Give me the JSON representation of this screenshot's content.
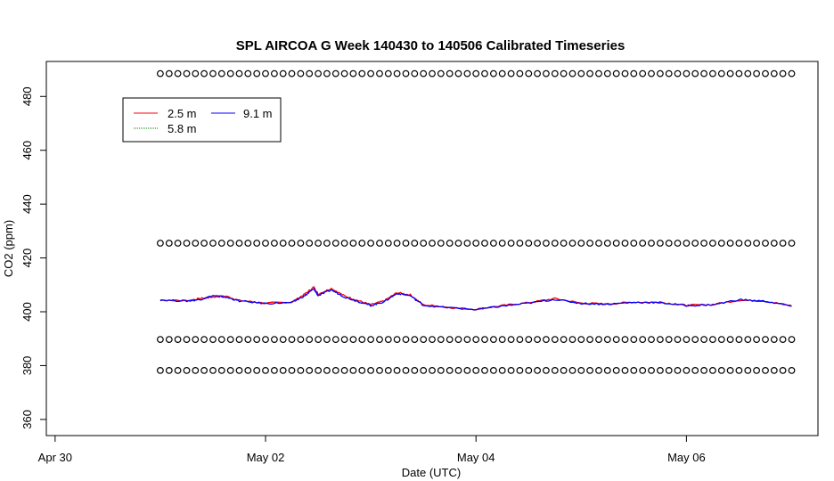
{
  "chart_data": {
    "type": "line",
    "title": "SPL AIRCOA G  Week 140430 to 140506  Calibrated Timeseries",
    "xlabel": "Date (UTC)",
    "ylabel": "CO2 (ppm)",
    "x_unit": "days",
    "xlim": [
      "2014-04-29T22:00",
      "2014-05-07T06:00"
    ],
    "ylim": [
      354,
      493
    ],
    "x_ticks": [
      {
        "label": "Apr 30",
        "value": "2014-04-30T00:00"
      },
      {
        "label": "May 02",
        "value": "2014-05-02T00:00"
      },
      {
        "label": "May 04",
        "value": "2014-05-04T00:00"
      },
      {
        "label": "May 06",
        "value": "2014-05-06T00:00"
      }
    ],
    "y_ticks": [
      360,
      380,
      400,
      420,
      440,
      460,
      480
    ],
    "grid": false,
    "legend": {
      "placement": "top-left",
      "entries": [
        {
          "name": "2.5 m",
          "color": "#ff0000"
        },
        {
          "name": "5.8 m",
          "color": "#008000"
        },
        {
          "name": "9.1 m",
          "color": "#0000ff"
        }
      ]
    },
    "series": [
      {
        "name": "2.5 m",
        "color": "#ff0000",
        "x": [
          "2014-05-01T00:00",
          "2014-05-01T06:00",
          "2014-05-01T09:00",
          "2014-05-01T12:00",
          "2014-05-01T15:00",
          "2014-05-01T18:00",
          "2014-05-02T00:00",
          "2014-05-02T06:00",
          "2014-05-02T09:00",
          "2014-05-02T11:00",
          "2014-05-02T12:00",
          "2014-05-02T15:00",
          "2014-05-02T18:00",
          "2014-05-02T21:00",
          "2014-05-03T00:00",
          "2014-05-03T03:00",
          "2014-05-03T06:00",
          "2014-05-03T09:00",
          "2014-05-03T12:00",
          "2014-05-03T18:00",
          "2014-05-04T00:00",
          "2014-05-04T06:00",
          "2014-05-04T12:00",
          "2014-05-04T18:00",
          "2014-05-05T00:00",
          "2014-05-05T06:00",
          "2014-05-05T12:00",
          "2014-05-05T18:00",
          "2014-05-06T00:00",
          "2014-05-06T06:00",
          "2014-05-06T12:00",
          "2014-05-06T18:00",
          "2014-05-07T00:00"
        ],
        "y": [
          404.4,
          404.1,
          404.9,
          405.5,
          405.8,
          404.2,
          403.2,
          403.6,
          406.6,
          409.2,
          406.6,
          408.7,
          405.9,
          404.2,
          402.6,
          404.0,
          407.1,
          406.3,
          402.6,
          401.6,
          400.9,
          402.3,
          403.4,
          404.9,
          403.2,
          402.9,
          403.6,
          403.5,
          402.4,
          402.7,
          404.3,
          404.0,
          402.2
        ]
      },
      {
        "name": "9.1 m",
        "color": "#0000ff",
        "x": [
          "2014-05-01T00:00",
          "2014-05-01T06:00",
          "2014-05-01T09:00",
          "2014-05-01T12:00",
          "2014-05-01T15:00",
          "2014-05-01T18:00",
          "2014-05-02T00:00",
          "2014-05-02T06:00",
          "2014-05-02T09:00",
          "2014-05-02T11:00",
          "2014-05-02T12:00",
          "2014-05-02T15:00",
          "2014-05-02T18:00",
          "2014-05-02T21:00",
          "2014-05-03T00:00",
          "2014-05-03T03:00",
          "2014-05-03T06:00",
          "2014-05-03T09:00",
          "2014-05-03T12:00",
          "2014-05-03T18:00",
          "2014-05-04T00:00",
          "2014-05-04T06:00",
          "2014-05-04T12:00",
          "2014-05-04T18:00",
          "2014-05-05T00:00",
          "2014-05-05T06:00",
          "2014-05-05T12:00",
          "2014-05-05T18:00",
          "2014-05-06T00:00",
          "2014-05-06T06:00",
          "2014-05-06T12:00",
          "2014-05-06T18:00",
          "2014-05-07T00:00"
        ],
        "y": [
          404.4,
          404.0,
          404.5,
          406.0,
          405.4,
          404.0,
          403.1,
          403.4,
          406.0,
          408.5,
          406.0,
          408.1,
          405.5,
          403.9,
          402.3,
          403.7,
          406.8,
          406.0,
          402.4,
          401.5,
          400.8,
          402.1,
          403.2,
          404.6,
          403.1,
          402.8,
          403.5,
          403.4,
          402.3,
          402.6,
          404.5,
          403.9,
          402.1
        ]
      }
    ],
    "reference_series": [
      {
        "marker": "circle",
        "y": 488.5,
        "x_range": [
          "2014-05-01T00:00",
          "2014-05-07T00:00"
        ],
        "step_hours": 2
      },
      {
        "marker": "circle",
        "y": 425.5,
        "x_range": [
          "2014-05-01T00:00",
          "2014-05-07T00:00"
        ],
        "step_hours": 2
      },
      {
        "marker": "circle",
        "y": 389.7,
        "x_range": [
          "2014-05-01T00:00",
          "2014-05-07T00:00"
        ],
        "step_hours": 2
      },
      {
        "marker": "circle",
        "y": 378.2,
        "x_range": [
          "2014-05-01T00:00",
          "2014-05-07T00:00"
        ],
        "step_hours": 2
      }
    ]
  }
}
